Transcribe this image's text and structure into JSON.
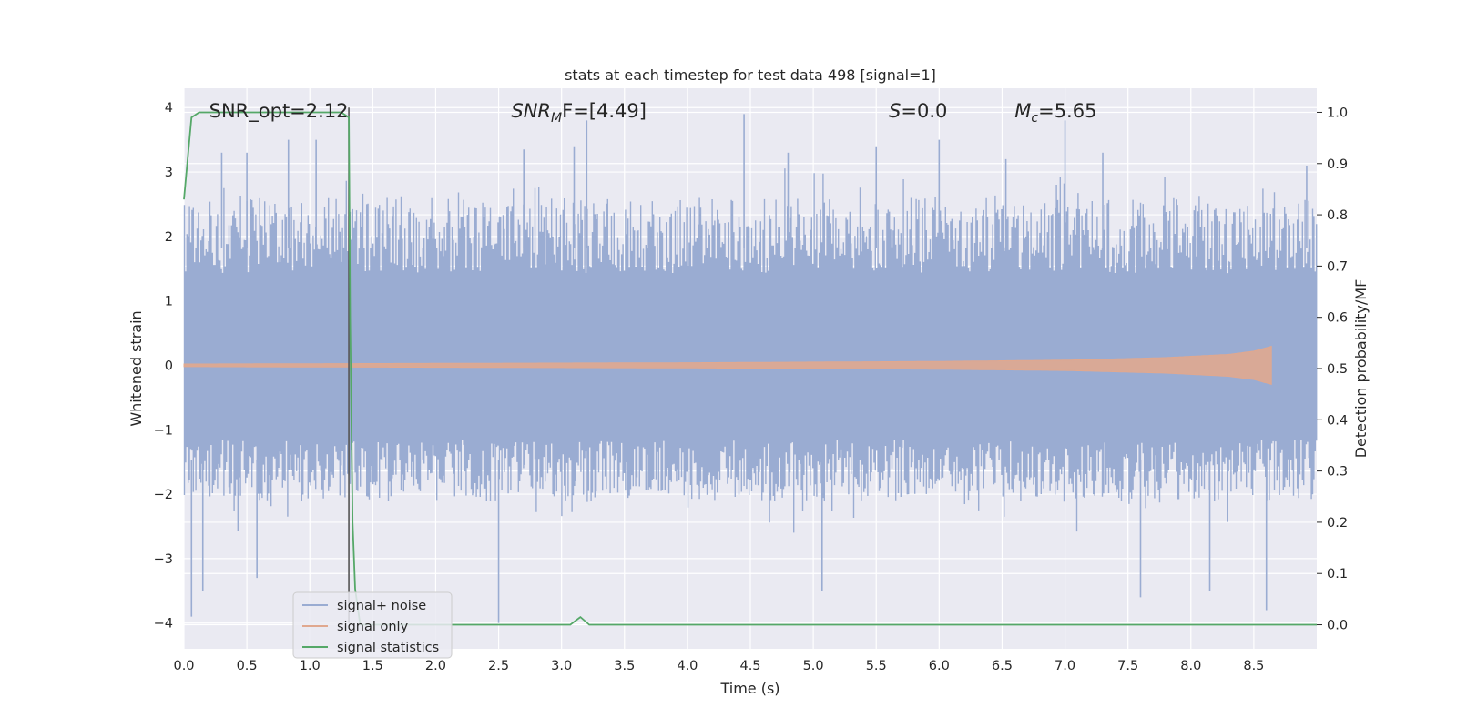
{
  "chart_data": {
    "type": "line",
    "title": "stats at each timestep for test data 498 [signal=1]",
    "xlabel": "Time (s)",
    "ylabel": "Whitened strain",
    "y2label": "Detection probability/MF",
    "xlim": [
      0.0,
      9.0
    ],
    "ylim": [
      -4.4,
      4.3
    ],
    "y2lim": [
      -0.047,
      1.047
    ],
    "x_ticks": [
      0.0,
      0.5,
      1.0,
      1.5,
      2.0,
      2.5,
      3.0,
      3.5,
      4.0,
      4.5,
      5.0,
      5.5,
      6.0,
      6.5,
      7.0,
      7.5,
      8.0,
      8.5
    ],
    "x_tick_labels": [
      "0.0",
      "0.5",
      "1.0",
      "1.5",
      "2.0",
      "2.5",
      "3.0",
      "3.5",
      "4.0",
      "4.5",
      "5.0",
      "5.5",
      "6.0",
      "6.5",
      "7.0",
      "7.5",
      "8.0",
      "8.5"
    ],
    "y_ticks": [
      4,
      3,
      2,
      1,
      0,
      -1,
      -2,
      -3,
      -4
    ],
    "y_tick_labels": [
      "4",
      "3",
      "2",
      "1",
      "0",
      "−1",
      "−2",
      "−3",
      "−4"
    ],
    "y2_ticks": [
      1.0,
      0.9,
      0.8,
      0.7,
      0.6,
      0.5,
      0.4,
      0.3,
      0.2,
      0.1,
      0.0
    ],
    "y2_tick_labels": [
      "1.0",
      "0.9",
      "0.8",
      "0.7",
      "0.6",
      "0.5",
      "0.4",
      "0.3",
      "0.2",
      "0.1",
      "0.0"
    ],
    "grid": true,
    "legend_position": "lower-left",
    "annotations": [
      {
        "id": "snr-opt",
        "text": "SNR_opt=2.12",
        "x": 0.2,
        "y": 3.85,
        "italic": false
      },
      {
        "id": "snr-mf",
        "text": "SNR",
        "sub": "M",
        "text2": "F=[4.49]",
        "x": 2.6,
        "y": 3.85,
        "italic": true
      },
      {
        "id": "s-value",
        "text": "S",
        "text2": "=0.0",
        "x": 5.6,
        "y": 3.85,
        "italic": true
      },
      {
        "id": "mc-value",
        "text": "M",
        "sub": "c",
        "text2": "=5.65",
        "x": 6.6,
        "y": 3.85,
        "italic": true
      }
    ],
    "vertical_line_x": 1.31,
    "series": [
      {
        "name": "signal+ noise",
        "color": "#9aacd2",
        "axis": "left",
        "kind": "noise",
        "envelope_upper": 2.6,
        "envelope_lower": -2.1,
        "peaks": [
          {
            "x": 0.06,
            "y": -3.9
          },
          {
            "x": 0.15,
            "y": -3.5
          },
          {
            "x": 0.3,
            "y": 3.3
          },
          {
            "x": 0.5,
            "y": 3.3
          },
          {
            "x": 0.58,
            "y": -3.3
          },
          {
            "x": 0.83,
            "y": 3.5
          },
          {
            "x": 1.05,
            "y": 3.5
          },
          {
            "x": 2.5,
            "y": -4.0
          },
          {
            "x": 2.7,
            "y": 3.35
          },
          {
            "x": 3.2,
            "y": 3.8
          },
          {
            "x": 3.1,
            "y": 3.4
          },
          {
            "x": 4.45,
            "y": 3.9
          },
          {
            "x": 4.8,
            "y": 3.3
          },
          {
            "x": 5.07,
            "y": -3.5
          },
          {
            "x": 5.5,
            "y": 3.4
          },
          {
            "x": 6.0,
            "y": 3.5
          },
          {
            "x": 6.53,
            "y": 3.2
          },
          {
            "x": 7.0,
            "y": 3.8
          },
          {
            "x": 7.3,
            "y": 3.3
          },
          {
            "x": 7.6,
            "y": -3.6
          },
          {
            "x": 8.15,
            "y": -3.5
          },
          {
            "x": 8.6,
            "y": -3.8
          },
          {
            "x": 8.92,
            "y": 3.1
          }
        ]
      },
      {
        "name": "signal only",
        "color": "#e0a88f",
        "axis": "left",
        "kind": "chirp",
        "x_end": 8.65,
        "amplitude": [
          [
            0.0,
            0.02
          ],
          [
            4.0,
            0.04
          ],
          [
            6.0,
            0.06
          ],
          [
            7.0,
            0.08
          ],
          [
            7.8,
            0.12
          ],
          [
            8.3,
            0.17
          ],
          [
            8.5,
            0.22
          ],
          [
            8.65,
            0.3
          ]
        ]
      },
      {
        "name": "signal statistics",
        "color": "#55a868",
        "axis": "right",
        "kind": "line",
        "x": [
          0.0,
          0.06,
          0.12,
          0.2,
          0.5,
          1.0,
          1.25,
          1.31,
          1.32,
          1.34,
          1.36,
          1.4,
          1.6,
          2.0,
          2.5,
          3.0,
          3.07,
          3.15,
          3.22,
          3.5,
          4.0,
          5.0,
          6.0,
          7.0,
          7.3,
          8.0,
          9.0
        ],
        "y": [
          0.83,
          0.99,
          1.0,
          1.0,
          1.0,
          1.0,
          1.0,
          0.99,
          0.6,
          0.2,
          0.07,
          0.0,
          0.0,
          0.0,
          0.0,
          0.0,
          0.0,
          0.015,
          0.0,
          0.0,
          0.0,
          0.0,
          0.0,
          0.0,
          0.0,
          0.0,
          0.0
        ]
      }
    ]
  }
}
